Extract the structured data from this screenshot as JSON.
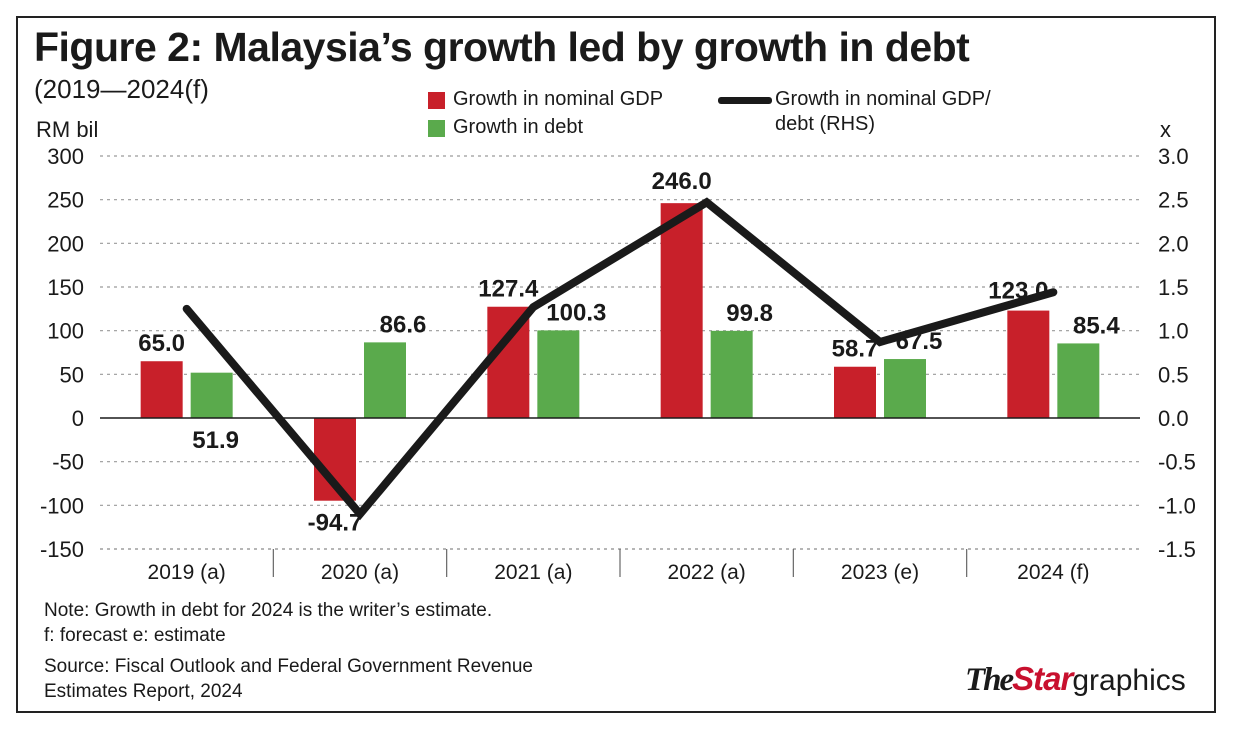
{
  "title": "Figure 2: Malaysia’s growth led by growth in debt",
  "subtitle": "(2019—2024(f)",
  "legend": {
    "gdp": "Growth in nominal GDP",
    "debt": "Growth in debt",
    "ratio_line1": "Growth in nominal GDP/",
    "ratio_line2": "debt (RHS)"
  },
  "notes": {
    "note1": "Note: Growth in debt for 2024 is the writer’s estimate.",
    "note2": "f: forecast  e: estimate",
    "source1": "Source: Fiscal Outlook and Federal Government Revenue",
    "source2": "Estimates Report, 2024"
  },
  "logo": {
    "the": "The",
    "star": "Star",
    "graphics": "graphics"
  },
  "colors": {
    "gdp": "#c8202a",
    "debt": "#5aaa4c",
    "line": "#1a1a1a",
    "grid": "#9a9a9a"
  },
  "chart_data": {
    "type": "bar",
    "categories": [
      "2019 (a)",
      "2020 (a)",
      "2021 (a)",
      "2022 (a)",
      "2023 (e)",
      "2024 (f)"
    ],
    "series": [
      {
        "name": "Growth in nominal GDP",
        "values": [
          65.0,
          -94.7,
          127.4,
          246.0,
          58.7,
          123.0
        ],
        "labels": [
          "65.0",
          "-94.7",
          "127.4",
          "246.0",
          "58.7",
          "123.0"
        ]
      },
      {
        "name": "Growth in debt",
        "values": [
          51.9,
          86.6,
          100.3,
          99.8,
          67.5,
          85.4
        ],
        "labels": [
          "51.9",
          "86.6",
          "100.3",
          "99.8",
          "67.5",
          "85.4"
        ]
      }
    ],
    "line_series": {
      "name": "Growth in nominal GDP/ debt (RHS)",
      "axis": "right",
      "values": [
        1.25,
        -1.1,
        1.27,
        2.47,
        0.87,
        1.44
      ]
    },
    "ylabel": "RM bil",
    "ylabel_right": "x",
    "ylim": [
      -150,
      300
    ],
    "ylim_right": [
      -1.5,
      3.0
    ],
    "yticks": [
      "300",
      "250",
      "200",
      "150",
      "100",
      "50",
      "0",
      "-50",
      "-100",
      "-150"
    ],
    "yticks_right": [
      "3.0",
      "2.5",
      "2.0",
      "1.5",
      "1.0",
      "0.5",
      "0.0",
      "-0.5",
      "-1.0",
      "-1.5"
    ],
    "grid": true,
    "legend_position": "top"
  }
}
